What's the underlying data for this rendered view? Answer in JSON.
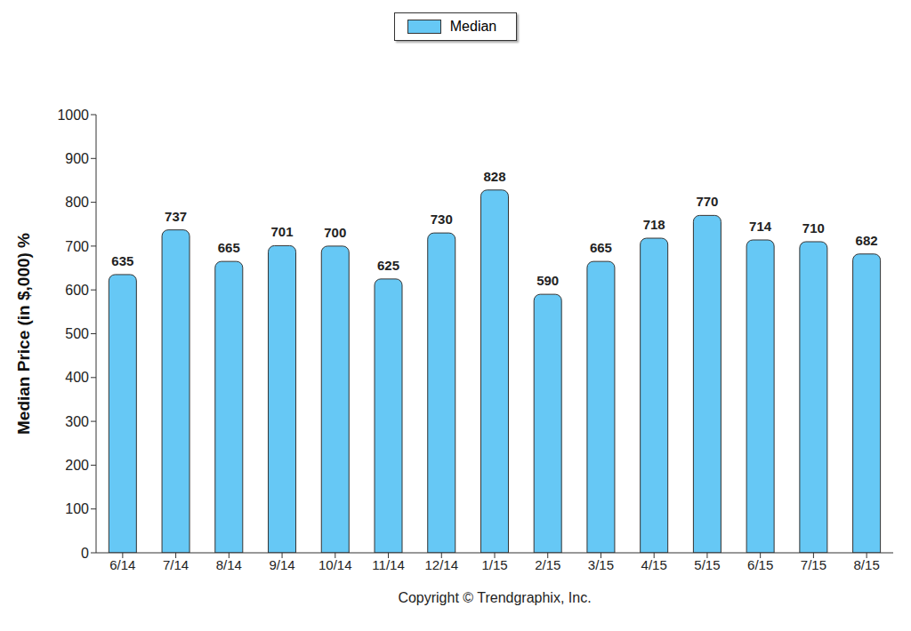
{
  "chart_data": {
    "type": "bar",
    "ylabel": "Median Price (in $,000) %",
    "xlabel": "Copyright © Trendgraphix, Inc.",
    "categories": [
      "6/14",
      "7/14",
      "8/14",
      "9/14",
      "10/14",
      "11/14",
      "12/14",
      "1/15",
      "2/15",
      "3/15",
      "4/15",
      "5/15",
      "6/15",
      "7/15",
      "8/15"
    ],
    "series": [
      {
        "name": "Median",
        "color": "#66c8f5",
        "values": [
          635,
          737,
          665,
          701,
          700,
          625,
          730,
          828,
          590,
          665,
          718,
          770,
          714,
          710,
          682
        ]
      }
    ],
    "ylim": [
      0,
      1000
    ],
    "yticks": [
      0,
      100,
      200,
      300,
      400,
      500,
      600,
      700,
      800,
      900,
      1000
    ],
    "legend": "top",
    "data_labels": true,
    "grid": false
  }
}
